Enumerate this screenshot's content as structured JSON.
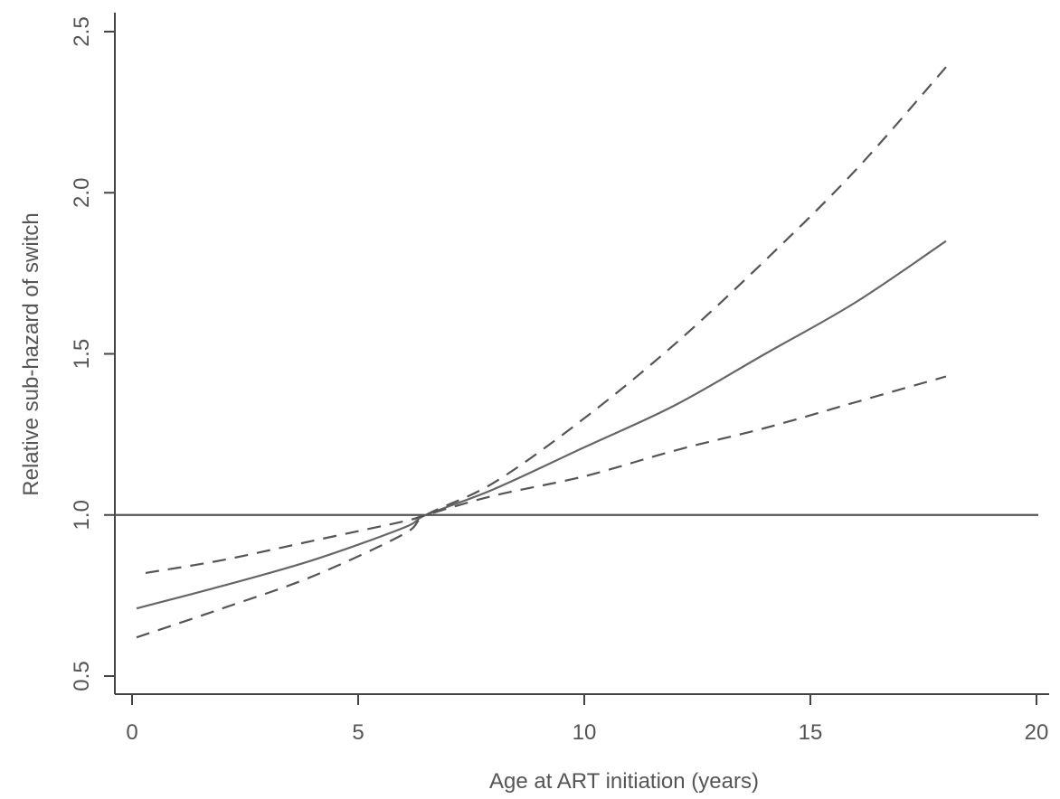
{
  "chart_data": {
    "type": "line",
    "xlabel": "Age at ART initiation (years)",
    "ylabel": "Relative sub-hazard of switch",
    "xlim": [
      0,
      20
    ],
    "ylim": [
      0.5,
      2.5
    ],
    "x_ticks": [
      0,
      5,
      10,
      15,
      20
    ],
    "x_tick_labels": [
      "0",
      "5",
      "10",
      "15",
      "20"
    ],
    "y_ticks": [
      0.5,
      1.0,
      1.5,
      2.0,
      2.5
    ],
    "y_tick_labels": [
      "0.5",
      "1.0",
      "1.5",
      "2.0",
      "2.5"
    ],
    "grid": false,
    "reference_line": {
      "y": 1.0,
      "style": "solid",
      "color": "#555555"
    },
    "series": [
      {
        "style": "solid",
        "color": "#666666",
        "x": [
          0.1,
          2,
          4,
          6,
          6.5,
          8,
          10,
          12,
          14,
          16,
          18
        ],
        "y": [
          0.71,
          0.78,
          0.86,
          0.96,
          1.0,
          1.08,
          1.21,
          1.34,
          1.5,
          1.66,
          1.85
        ]
      },
      {
        "style": "dashed",
        "color": "#555555",
        "x": [
          0.1,
          2,
          4,
          6,
          6.5,
          8,
          10,
          12,
          14,
          16,
          18
        ],
        "y": [
          0.62,
          0.71,
          0.81,
          0.94,
          1.0,
          1.1,
          1.3,
          1.53,
          1.79,
          2.07,
          2.39
        ]
      },
      {
        "style": "dashed",
        "color": "#555555",
        "x": [
          0.3,
          2,
          4,
          6,
          6.5,
          8,
          10,
          12,
          14,
          16,
          18
        ],
        "y": [
          0.82,
          0.86,
          0.92,
          0.98,
          1.0,
          1.06,
          1.12,
          1.2,
          1.27,
          1.35,
          1.43
        ]
      }
    ]
  }
}
